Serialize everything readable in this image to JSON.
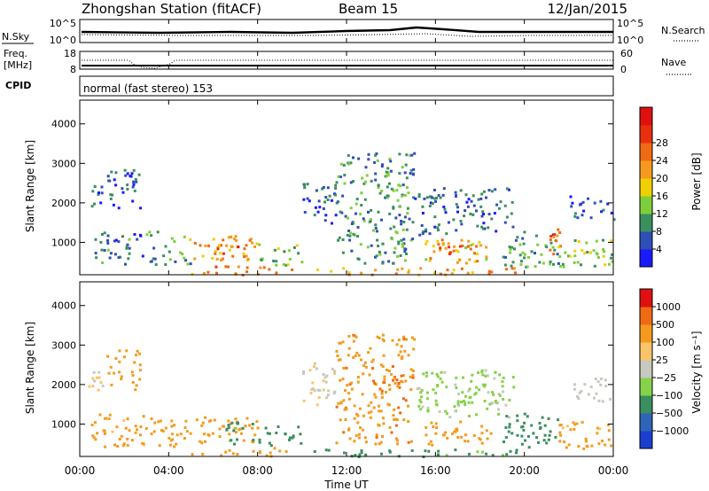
{
  "header": {
    "station": "Zhongshan Station (fitACF)",
    "beam": "Beam 15",
    "date": "12/Jan/2015"
  },
  "top_panels": {
    "nsky_label": "N.Sky",
    "nsky_ticks": [
      "10^5",
      "10^0"
    ],
    "nsearch_label": "N.Search",
    "freq_label_line1": "Freq.",
    "freq_label_line2": "[MHz]",
    "freq_ticks": [
      "18",
      "8"
    ],
    "nave_ticks": [
      "60",
      "0"
    ],
    "nave_label": "Nave",
    "cpid_label": "CPID",
    "cpid_value": "normal (fast stereo) 153"
  },
  "x_axis": {
    "label": "Time UT",
    "ticks": [
      "00:00",
      "04:00",
      "08:00",
      "12:00",
      "16:00",
      "20:00",
      "00:00"
    ]
  },
  "colors": {
    "power": [
      "#1a1aff",
      "#2f4fb8",
      "#3a8f5e",
      "#7ccf3a",
      "#f0d000",
      "#f59a1e",
      "#ef6a14",
      "#e8300e",
      "#e01010"
    ],
    "velocity": [
      "#e01010",
      "#ef6a14",
      "#f59a1e",
      "#fbc46a",
      "#c8c8c0",
      "#86d24a",
      "#3a8f5e",
      "#2f64b8",
      "#1a3fd0"
    ]
  },
  "chart_data": [
    {
      "type": "heatmap",
      "name": "power",
      "ylabel": "Slant Range [km]",
      "y_ticks": [
        "1000",
        "2000",
        "3000",
        "4000"
      ],
      "yrange_km": [
        180,
        4600
      ],
      "x_hours_range": [
        0,
        24
      ],
      "colorbar_label": "Power [dB]",
      "colorbar_ticks": [
        "4",
        "8",
        "12",
        "16",
        "20",
        "24",
        "28"
      ],
      "colorbar_range": [
        0,
        32
      ],
      "blobs": [
        {
          "t0": 0.3,
          "t1": 1.0,
          "r0": 1800,
          "r1": 2500,
          "v": 6
        },
        {
          "t0": 0.5,
          "t1": 3.5,
          "r0": 450,
          "r1": 1300,
          "v": 8
        },
        {
          "t0": 1.2,
          "t1": 2.8,
          "r0": 1900,
          "r1": 2900,
          "v": 6
        },
        {
          "t0": 3.5,
          "t1": 5.0,
          "r0": 450,
          "r1": 1200,
          "v": 12
        },
        {
          "t0": 5.0,
          "t1": 8.0,
          "r0": 550,
          "r1": 1200,
          "v": 22
        },
        {
          "t0": 5.7,
          "t1": 7.2,
          "r0": 650,
          "r1": 1000,
          "v": 28
        },
        {
          "t0": 5.0,
          "t1": 9.5,
          "r0": 200,
          "r1": 420,
          "v": 24
        },
        {
          "t0": 8.0,
          "t1": 10.0,
          "r0": 450,
          "r1": 1000,
          "v": 14
        },
        {
          "t0": 10.0,
          "t1": 11.5,
          "r0": 1500,
          "r1": 2600,
          "v": 7
        },
        {
          "t0": 11.5,
          "t1": 15.0,
          "r0": 500,
          "r1": 3300,
          "v": 10
        },
        {
          "t0": 15.5,
          "t1": 18.5,
          "r0": 500,
          "r1": 1100,
          "v": 20
        },
        {
          "t0": 16.0,
          "t1": 18.0,
          "r0": 650,
          "r1": 950,
          "v": 27
        },
        {
          "t0": 15.0,
          "t1": 19.5,
          "r0": 1200,
          "r1": 2400,
          "v": 7
        },
        {
          "t0": 19.0,
          "t1": 21.5,
          "r0": 400,
          "r1": 1300,
          "v": 11
        },
        {
          "t0": 21.0,
          "t1": 21.6,
          "r0": 700,
          "r1": 1400,
          "v": 26
        },
        {
          "t0": 21.5,
          "t1": 24.0,
          "r0": 400,
          "r1": 1100,
          "v": 14
        },
        {
          "t0": 22.0,
          "t1": 24.0,
          "r0": 1600,
          "r1": 2200,
          "v": 6
        },
        {
          "t0": 10.5,
          "t1": 20.0,
          "r0": 200,
          "r1": 380,
          "v": 22
        }
      ]
    },
    {
      "type": "heatmap",
      "name": "velocity",
      "ylabel": "Slant Range [km]",
      "y_ticks": [
        "1000",
        "2000",
        "3000",
        "4000"
      ],
      "yrange_km": [
        180,
        4600
      ],
      "x_hours_range": [
        0,
        24
      ],
      "colorbar_label": "Velocity [m s⁻¹]",
      "colorbar_ticks": [
        "1000",
        "500",
        "100",
        "25",
        "−25",
        "−100",
        "−500",
        "−1000"
      ],
      "blobs": [
        {
          "t0": 0.3,
          "t1": 1.0,
          "r0": 1800,
          "r1": 2500,
          "v": -30
        },
        {
          "t0": 0.5,
          "t1": 3.5,
          "r0": 450,
          "r1": 1300,
          "v": -150
        },
        {
          "t0": 1.2,
          "t1": 2.8,
          "r0": 1900,
          "r1": 2900,
          "v": -200
        },
        {
          "t0": 3.5,
          "t1": 5.0,
          "r0": 450,
          "r1": 1200,
          "v": -300
        },
        {
          "t0": 5.0,
          "t1": 8.0,
          "r0": 550,
          "r1": 1200,
          "v": -350
        },
        {
          "t0": 6.5,
          "t1": 8.0,
          "r0": 500,
          "r1": 1100,
          "v": 150
        },
        {
          "t0": 5.0,
          "t1": 9.5,
          "r0": 200,
          "r1": 420,
          "v": -200
        },
        {
          "t0": 8.0,
          "t1": 10.0,
          "r0": 450,
          "r1": 1000,
          "v": 200
        },
        {
          "t0": 10.0,
          "t1": 11.5,
          "r0": 1500,
          "r1": 2600,
          "v": -30
        },
        {
          "t0": 11.5,
          "t1": 15.0,
          "r0": 500,
          "r1": 3300,
          "v": -400
        },
        {
          "t0": 15.5,
          "t1": 18.5,
          "r0": 500,
          "r1": 1100,
          "v": -300
        },
        {
          "t0": 15.0,
          "t1": 19.5,
          "r0": 1200,
          "r1": 2400,
          "v": 40
        },
        {
          "t0": 19.0,
          "t1": 21.5,
          "r0": 400,
          "r1": 1300,
          "v": 250
        },
        {
          "t0": 21.5,
          "t1": 24.0,
          "r0": 400,
          "r1": 1100,
          "v": -150
        },
        {
          "t0": 22.0,
          "t1": 24.0,
          "r0": 1600,
          "r1": 2200,
          "v": 0
        },
        {
          "t0": 10.5,
          "t1": 20.0,
          "r0": 200,
          "r1": 380,
          "v": 150
        }
      ]
    }
  ]
}
